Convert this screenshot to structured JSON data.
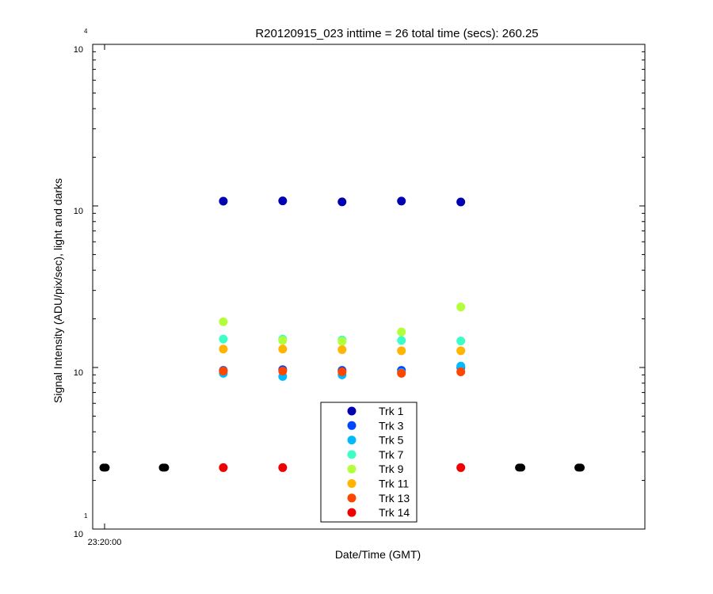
{
  "chart_data": {
    "type": "scatter",
    "title": "R20120915_023 inttime = 26 total time (secs): 260.25",
    "xlabel": "Date/Time (GMT)",
    "ylabel": "Signal Intensity (ADU/pix/sec), light and darks",
    "y_scale": "log",
    "ylim": [
      10,
      10000
    ],
    "xlim": [
      -0.2,
      9.1
    ],
    "x_ticks": [
      {
        "x": 0,
        "label": "23:20:00"
      }
    ],
    "y_ticks": [
      {
        "value": 10,
        "base": "10",
        "exp": "1"
      },
      {
        "value": 100,
        "base": "10",
        "exp": ""
      },
      {
        "value": 1000,
        "base": "10",
        "exp": ""
      },
      {
        "value": 10000,
        "base": "10",
        "exp": "4"
      }
    ],
    "grid": false,
    "legend_position": "bottom-center",
    "series": [
      {
        "name": "Trk 1",
        "color": "#0000b3",
        "x": [
          2,
          3,
          4,
          5,
          6
        ],
        "y": [
          1070,
          1075,
          1060,
          1072,
          1058
        ]
      },
      {
        "name": "Trk 3",
        "color": "#0046ff",
        "x": [
          2,
          3,
          4,
          5,
          6
        ],
        "y": [
          96,
          97,
          96,
          96,
          100
        ]
      },
      {
        "name": "Trk 5",
        "color": "#00baff",
        "x": [
          2,
          3,
          4,
          5,
          6
        ],
        "y": [
          92,
          88,
          90,
          93,
          102
        ]
      },
      {
        "name": "Trk 7",
        "color": "#3cffc8",
        "x": [
          2,
          3,
          4,
          5,
          6
        ],
        "y": [
          150,
          150,
          148,
          147,
          146
        ]
      },
      {
        "name": "Trk 9",
        "color": "#b4ff3c",
        "x": [
          2,
          3,
          4,
          5,
          6
        ],
        "y": [
          192,
          147,
          145,
          166,
          237
        ]
      },
      {
        "name": "Trk 11",
        "color": "#ffb400",
        "x": [
          2,
          3,
          4,
          5,
          6
        ],
        "y": [
          130,
          130,
          129,
          127,
          127
        ]
      },
      {
        "name": "Trk 13",
        "color": "#ff4600",
        "x": [
          2,
          3,
          4,
          5,
          6
        ],
        "y": [
          95,
          95,
          94,
          92,
          94
        ]
      },
      {
        "name": "Trk 14",
        "color": "#f00000",
        "x": [
          2,
          3,
          4,
          5,
          6
        ],
        "y": [
          24,
          24,
          24,
          24,
          24
        ]
      }
    ],
    "darks": {
      "color": "#000000",
      "x": [
        0,
        1,
        7,
        8
      ],
      "y": [
        24,
        24,
        24,
        24
      ]
    }
  }
}
